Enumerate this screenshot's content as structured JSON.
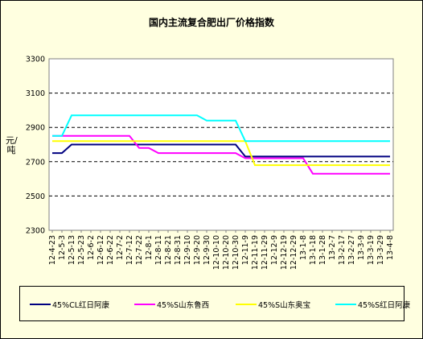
{
  "chart_data": {
    "type": "line",
    "title": "国内主流复合肥出厂价格指数",
    "ylabel": "元/吨",
    "xlabel": "",
    "ylim": [
      2300,
      3300
    ],
    "yticks": [
      2300,
      2500,
      2700,
      2900,
      3100,
      3300
    ],
    "grid": true,
    "legend": "bottom",
    "categories": [
      "12-4-23",
      "12-5-3",
      "12-5-13",
      "12-5-23",
      "12-6-2",
      "12-6-12",
      "12-6-22",
      "12-7-2",
      "12-7-12",
      "12-7-22",
      "12-8-1",
      "12-8-11",
      "12-8-21",
      "12-8-31",
      "12-9-10",
      "12-9-20",
      "12-9-30",
      "12-10-10",
      "12-10-20",
      "12-10-30",
      "12-11-9",
      "12-11-19",
      "12-11-29",
      "12-12-9",
      "12-12-19",
      "12-12-29",
      "13-1-8",
      "13-1-18",
      "13-1-28",
      "13-2-7",
      "13-2-17",
      "13-2-27",
      "13-3-9",
      "13-3-19",
      "13-3-29",
      "13-4-8"
    ],
    "series": [
      {
        "name": "45%CL红日阿康",
        "color": "#000080",
        "values": [
          2750,
          2750,
          2800,
          2800,
          2800,
          2800,
          2800,
          2800,
          2800,
          2800,
          2800,
          2800,
          2800,
          2800,
          2800,
          2800,
          2800,
          2800,
          2800,
          2800,
          2730,
          2730,
          2730,
          2730,
          2730,
          2730,
          2730,
          2730,
          2730,
          2730,
          2730,
          2730,
          2730,
          2730,
          2730,
          2730
        ]
      },
      {
        "name": "45%S山东鲁西",
        "color": "#ff00ff",
        "values": [
          2850,
          2850,
          2850,
          2850,
          2850,
          2850,
          2850,
          2850,
          2850,
          2780,
          2780,
          2750,
          2750,
          2750,
          2750,
          2750,
          2750,
          2750,
          2750,
          2750,
          2720,
          2720,
          2720,
          2720,
          2720,
          2720,
          2720,
          2630,
          2630,
          2630,
          2630,
          2630,
          2630,
          2630,
          2630,
          2630
        ]
      },
      {
        "name": "45%S山东奥宝",
        "color": "#ffff00",
        "values": [
          2820,
          2820,
          2820,
          2820,
          2820,
          2820,
          2820,
          2820,
          2820,
          2820,
          2820,
          2820,
          2820,
          2820,
          2820,
          2820,
          2820,
          2820,
          2820,
          2820,
          2820,
          2680,
          2680,
          2680,
          2680,
          2680,
          2680,
          2680,
          2680,
          2680,
          2680,
          2680,
          2680,
          2680,
          2680,
          2680
        ]
      },
      {
        "name": "45%S红日阿康",
        "color": "#00ffff",
        "values": [
          2850,
          2850,
          2970,
          2970,
          2970,
          2970,
          2970,
          2970,
          2970,
          2970,
          2970,
          2970,
          2970,
          2970,
          2970,
          2970,
          2940,
          2940,
          2940,
          2940,
          2820,
          2820,
          2820,
          2820,
          2820,
          2820,
          2820,
          2820,
          2820,
          2820,
          2820,
          2820,
          2820,
          2820,
          2820,
          2820
        ]
      }
    ]
  }
}
